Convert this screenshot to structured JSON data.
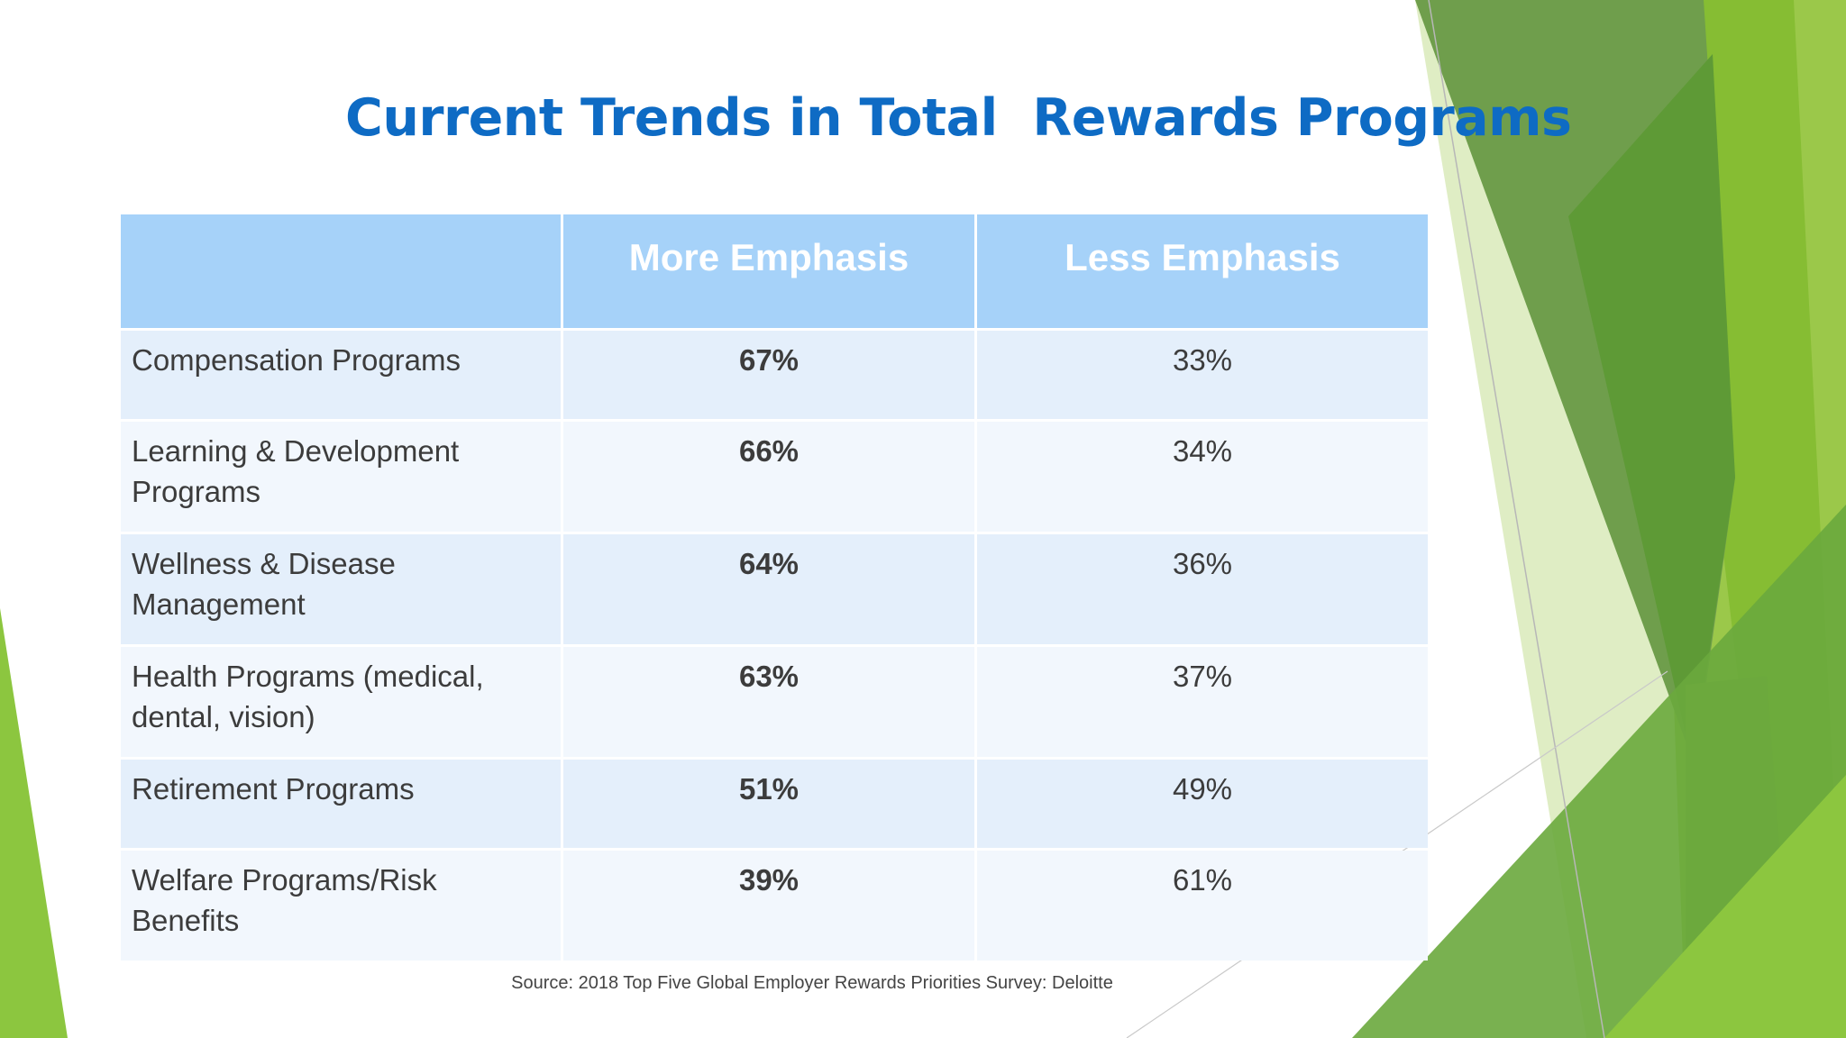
{
  "slide": {
    "title": "Current Trends in Total  Rewards Programs",
    "source": "Source: 2018 Top Five Global Employer Rewards Priorities Survey: Deloitte"
  },
  "table": {
    "headers": [
      "",
      "More Emphasis",
      "Less Emphasis"
    ],
    "rows": [
      {
        "category": "Compensation Programs",
        "more": "67%",
        "less": "33%"
      },
      {
        "category": "Learning & Development Programs",
        "more": "66%",
        "less": "34%"
      },
      {
        "category": "Wellness & Disease Management",
        "more": "64%",
        "less": "36%"
      },
      {
        "category": "Health Programs  (medical, dental, vision)",
        "more": "63%",
        "less": "37%"
      },
      {
        "category": "Retirement Programs",
        "more": "51%",
        "less": "49%"
      },
      {
        "category": "Welfare Programs/Risk Benefits",
        "more": "39%",
        "less": "61%"
      }
    ]
  },
  "colors": {
    "title": "#0e6bc4",
    "header_fill": "#a6d2f9",
    "row_odd": "#e4effb",
    "row_even": "#f2f7fd",
    "accent_green": "#8cc63f",
    "dark_green": "#5c8f33"
  }
}
